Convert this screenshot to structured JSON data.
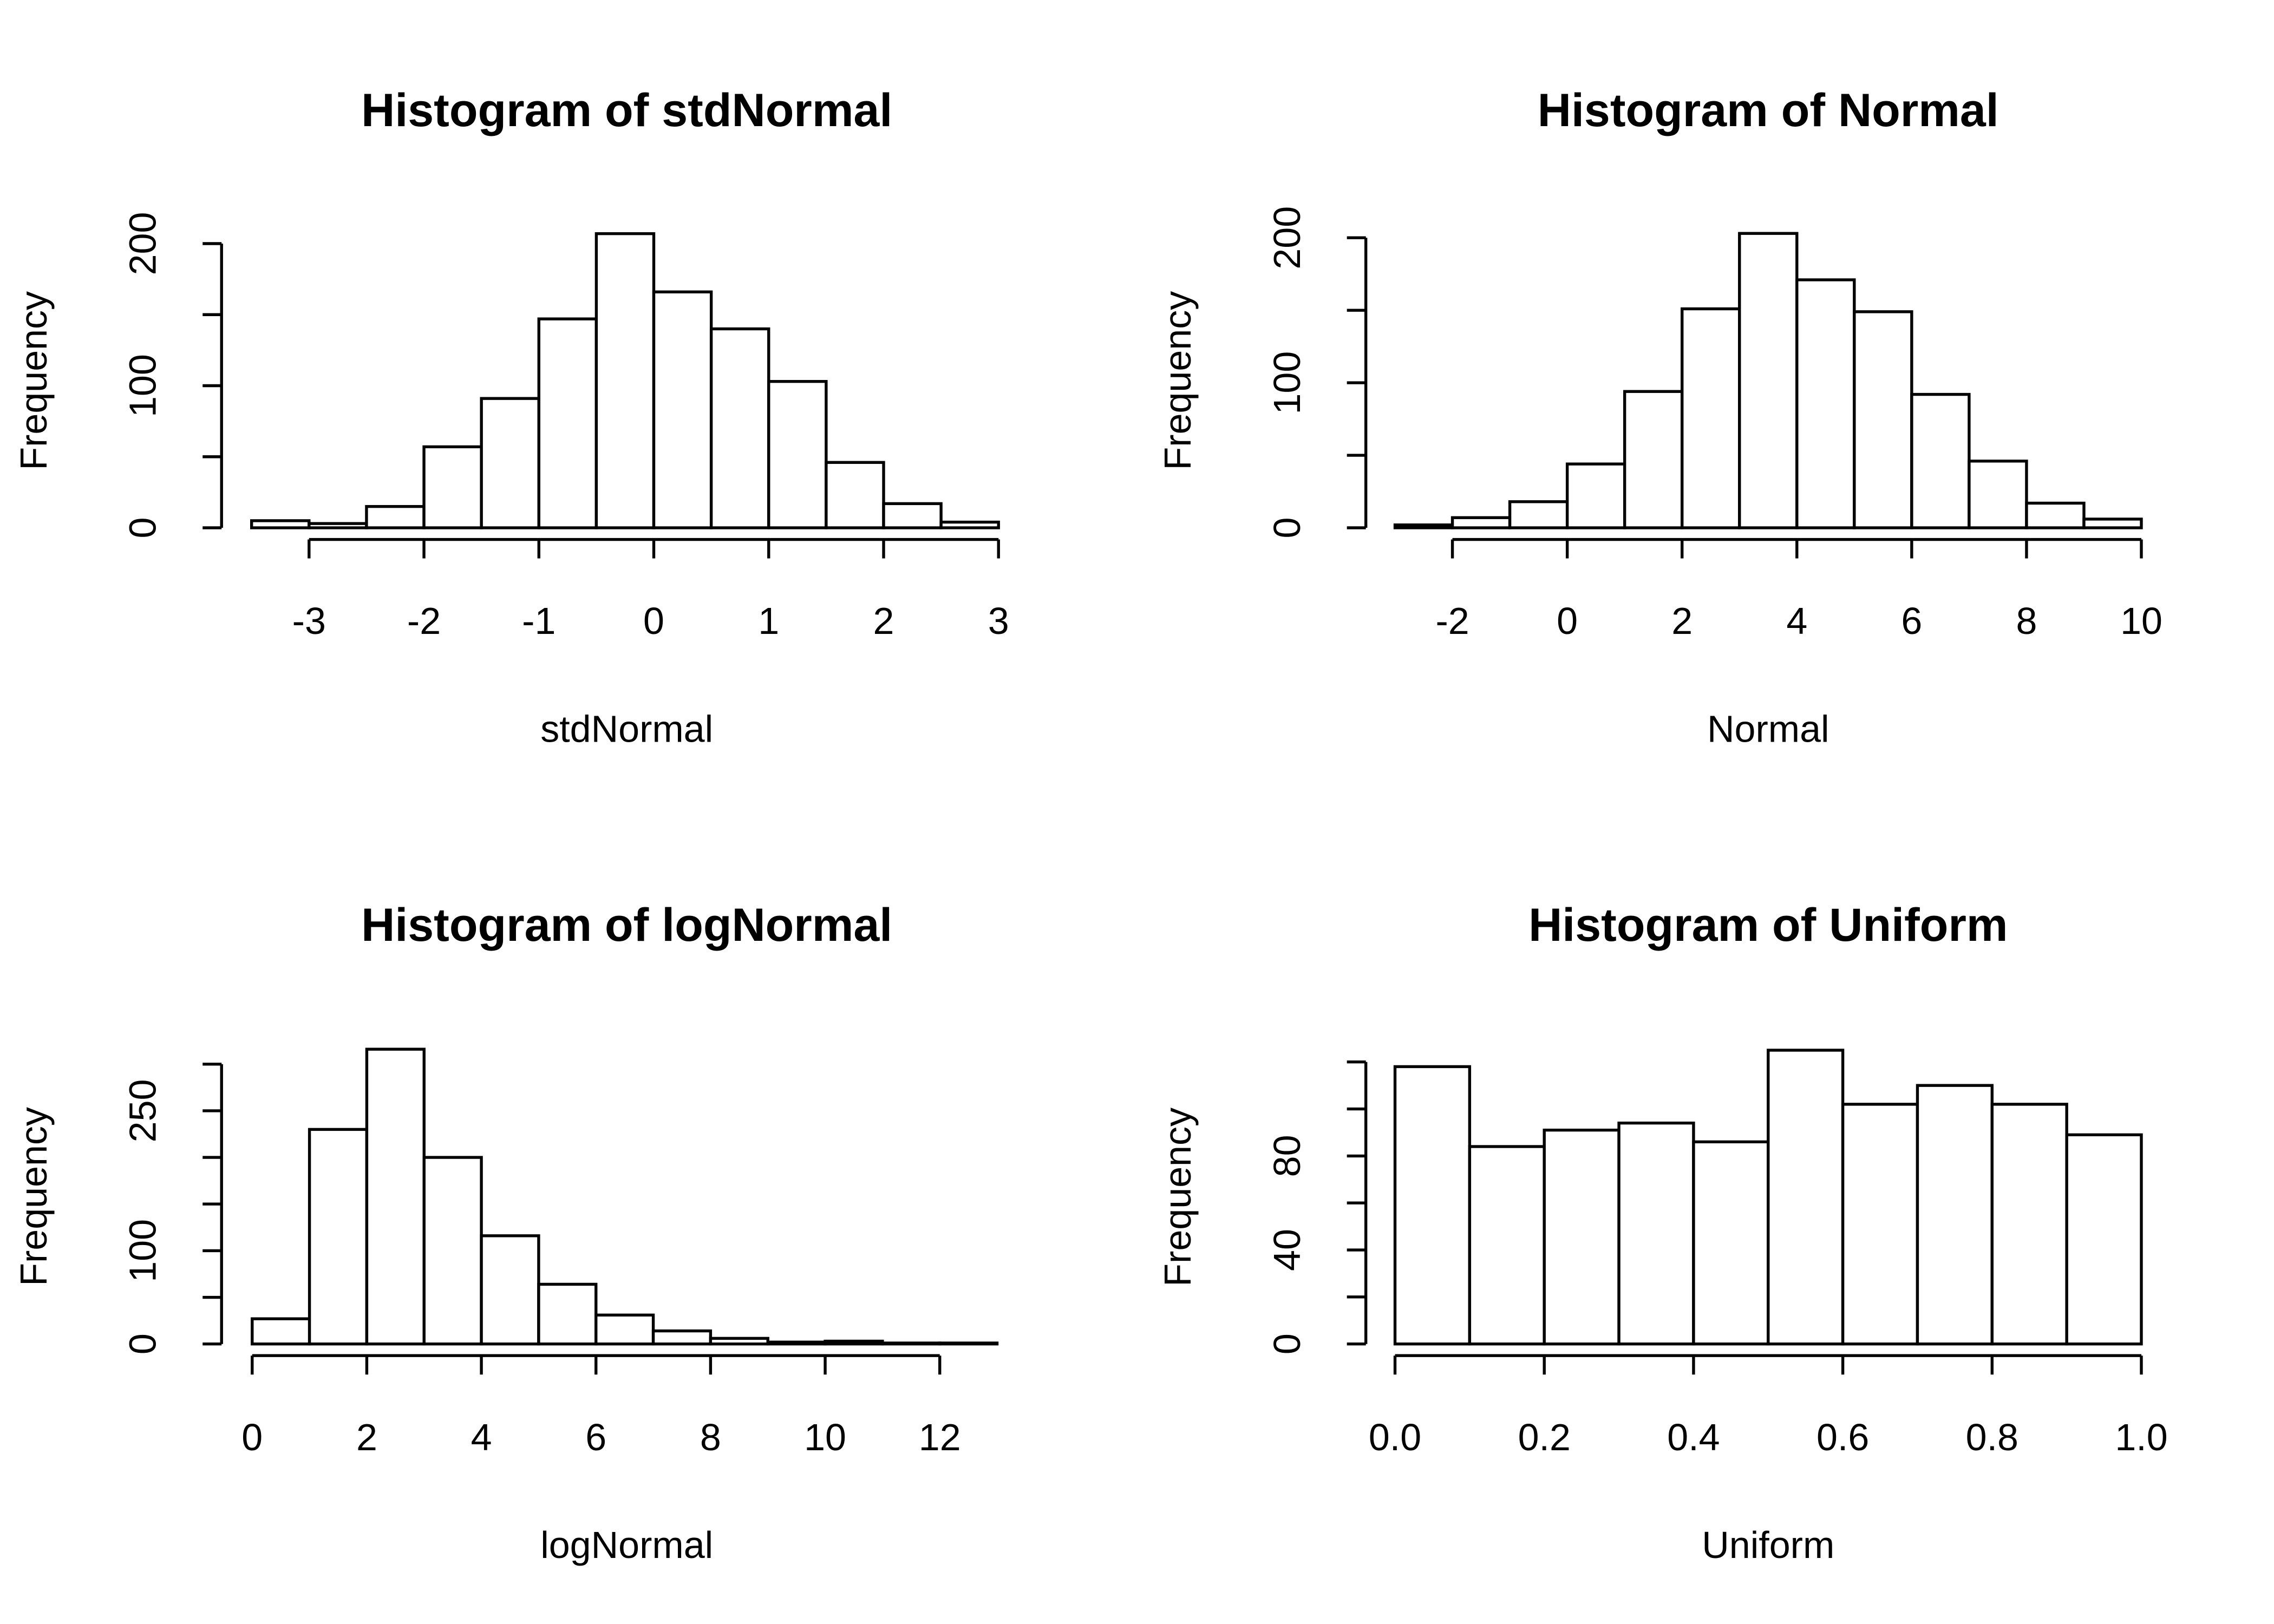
{
  "chart_data": [
    {
      "type": "histogram",
      "title": "Histogram of stdNormal",
      "xlabel": "stdNormal",
      "ylabel": "Frequency",
      "bins": [
        -3.5,
        -3,
        -2.5,
        -2,
        -1.5,
        -1,
        -0.5,
        0,
        0.5,
        1,
        1.5,
        2,
        2.5,
        3
      ],
      "counts": [
        5,
        3,
        15,
        57,
        91,
        147,
        207,
        166,
        140,
        103,
        46,
        17,
        4
      ],
      "xlim": [
        -3.5,
        3
      ],
      "ylim": [
        0,
        207
      ],
      "xticks": [
        -3,
        -2,
        -1,
        0,
        1,
        2,
        3
      ],
      "yticks": [
        0,
        50,
        100,
        150,
        200
      ],
      "ytick_labels": [
        0,
        100,
        200
      ]
    },
    {
      "type": "histogram",
      "title": "Histogram of Normal",
      "xlabel": "Normal",
      "ylabel": "Frequency",
      "bins": [
        -3,
        -2,
        -1,
        0,
        1,
        2,
        3,
        4,
        5,
        6,
        7,
        8,
        9,
        10
      ],
      "counts": [
        2,
        7,
        18,
        44,
        94,
        151,
        203,
        171,
        149,
        92,
        46,
        17,
        6
      ],
      "xlim": [
        -3,
        10
      ],
      "ylim": [
        0,
        203
      ],
      "xticks": [
        -2,
        0,
        2,
        4,
        6,
        8,
        10
      ],
      "yticks": [
        0,
        50,
        100,
        150,
        200
      ],
      "ytick_labels": [
        0,
        100,
        200
      ]
    },
    {
      "type": "histogram",
      "title": "Histogram of logNormal",
      "xlabel": "logNormal",
      "ylabel": "Frequency",
      "bins": [
        0,
        1,
        2,
        3,
        4,
        5,
        6,
        7,
        8,
        9,
        10,
        11,
        12,
        13
      ],
      "counts": [
        27,
        230,
        316,
        200,
        116,
        64,
        31,
        14,
        6,
        2,
        3,
        1,
        1
      ],
      "xlim": [
        0,
        13
      ],
      "ylim": [
        0,
        316
      ],
      "xticks": [
        0,
        2,
        4,
        6,
        8,
        10,
        12
      ],
      "yticks": [
        0,
        50,
        100,
        150,
        200,
        250,
        300
      ],
      "ytick_labels": [
        0,
        100,
        250
      ]
    },
    {
      "type": "histogram",
      "title": "Histogram of Uniform",
      "xlabel": "Uniform",
      "ylabel": "Frequency",
      "bins": [
        0,
        0.1,
        0.2,
        0.3,
        0.4,
        0.5,
        0.6,
        0.7,
        0.8,
        0.9,
        1
      ],
      "counts": [
        118,
        84,
        91,
        94,
        86,
        125,
        102,
        110,
        102,
        89
      ],
      "xlim": [
        0,
        1
      ],
      "ylim": [
        0,
        125
      ],
      "xticks": [
        {
          "value": 0,
          "label": "0.0"
        },
        0.2,
        0.4,
        0.6,
        0.8,
        {
          "value": 1,
          "label": "1.0"
        }
      ],
      "yticks": [
        0,
        20,
        40,
        60,
        80,
        100,
        120
      ],
      "ytick_labels": [
        0,
        40,
        80
      ]
    }
  ]
}
